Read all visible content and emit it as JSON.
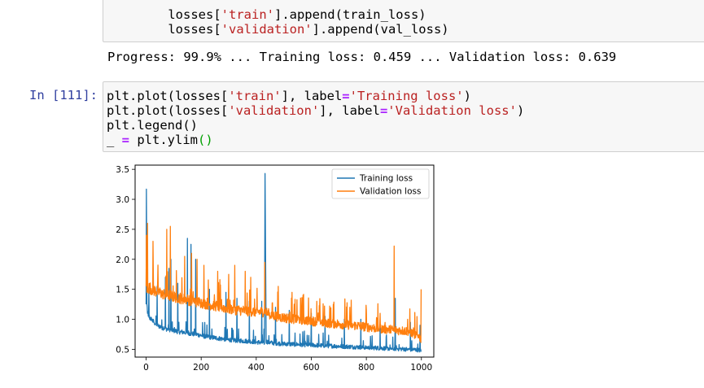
{
  "top_cell": {
    "line1": {
      "a": "    losses[",
      "b": "'train'",
      "c": "].append(train_loss)"
    },
    "line2": {
      "a": "    losses[",
      "b": "'validation'",
      "c": "].append(val_loss)"
    }
  },
  "progress_output": "Progress: 99.9% ... Training loss: 0.459 ... Validation loss: 0.639",
  "cell_111": {
    "prompt": "In [111]:",
    "line1": {
      "a": "plt.plot(losses[",
      "b": "'train'",
      "c": "], label",
      "d": "=",
      "e": "'Training loss'",
      "f": ")"
    },
    "line2": {
      "a": "plt.plot(losses[",
      "b": "'validation'",
      "c": "], label",
      "d": "=",
      "e": "'Validation loss'",
      "f": ")"
    },
    "line3": "plt.legend()",
    "line4": {
      "a": "_ ",
      "b": "=",
      "c": " plt.ylim",
      "d": "()"
    }
  },
  "chart_data": {
    "type": "line",
    "xlim": [
      -40,
      1045
    ],
    "ylim": [
      0.37,
      3.57
    ],
    "xticks": [
      0,
      200,
      400,
      600,
      800,
      1000
    ],
    "yticks": [
      0.5,
      1.0,
      1.5,
      2.0,
      2.5,
      3.0,
      3.5
    ],
    "xtick_labels": [
      "0",
      "200",
      "400",
      "600",
      "800",
      "1000"
    ],
    "ytick_labels": [
      "0.5",
      "1.0",
      "1.5",
      "2.0",
      "2.5",
      "3.0",
      "3.5"
    ],
    "legend_position": "top-right",
    "grid": false,
    "n_points": 1000,
    "series": [
      {
        "name": "Training loss",
        "color": "#1f77b4",
        "key_x": [
          0,
          1,
          3,
          5,
          8,
          15,
          20,
          30,
          45,
          60,
          80,
          85,
          100,
          120,
          140,
          150,
          160,
          180,
          200,
          220,
          250,
          280,
          300,
          320,
          350,
          380,
          400,
          420,
          430,
          432,
          436,
          450,
          500,
          550,
          600,
          650,
          700,
          750,
          800,
          850,
          890,
          900,
          950,
          990,
          999
        ],
        "key_y": [
          1.25,
          3.17,
          1.25,
          1.1,
          1.05,
          1.0,
          0.98,
          0.93,
          0.88,
          0.85,
          0.82,
          0.82,
          0.8,
          0.78,
          0.77,
          0.77,
          0.75,
          0.74,
          0.72,
          0.7,
          0.68,
          0.66,
          0.65,
          0.64,
          0.63,
          0.62,
          0.61,
          0.6,
          0.6,
          3.43,
          0.62,
          0.6,
          0.58,
          0.57,
          0.56,
          0.55,
          0.54,
          0.53,
          0.52,
          0.51,
          0.5,
          0.5,
          0.49,
          0.48,
          0.46
        ],
        "noise": 0.09,
        "spikes": [
          [
            10,
            1.5
          ],
          [
            40,
            1.55
          ],
          [
            70,
            1.7
          ],
          [
            83,
            1.85
          ],
          [
            90,
            2.0
          ],
          [
            115,
            1.6
          ],
          [
            150,
            2.35
          ],
          [
            163,
            2.25
          ],
          [
            180,
            2.0
          ],
          [
            230,
            1.5
          ],
          [
            290,
            1.45
          ],
          [
            330,
            1.35
          ],
          [
            375,
            1.3
          ],
          [
            420,
            1.3
          ],
          [
            470,
            1.2
          ],
          [
            520,
            1.15
          ],
          [
            600,
            1.1
          ],
          [
            650,
            1.05
          ],
          [
            720,
            1.0
          ],
          [
            780,
            1.0
          ],
          [
            850,
            0.9
          ],
          [
            905,
            1.35
          ],
          [
            960,
            0.95
          ],
          [
            995,
            0.9
          ]
        ]
      },
      {
        "name": "Validation loss",
        "color": "#ff7f0e",
        "key_x": [
          0,
          1,
          3,
          10,
          30,
          60,
          100,
          150,
          200,
          250,
          300,
          350,
          400,
          432,
          450,
          500,
          550,
          600,
          650,
          700,
          750,
          800,
          850,
          900,
          950,
          990,
          999
        ],
        "key_y": [
          1.55,
          2.4,
          1.45,
          1.5,
          1.45,
          1.4,
          1.35,
          1.3,
          1.25,
          1.2,
          1.15,
          1.12,
          1.1,
          1.1,
          1.05,
          1.0,
          0.98,
          0.95,
          0.92,
          0.9,
          0.88,
          0.85,
          0.82,
          0.8,
          0.78,
          0.7,
          0.65
        ],
        "noise": 0.17,
        "spikes": [
          [
            5,
            2.6
          ],
          [
            25,
            2.3
          ],
          [
            75,
            2.5
          ],
          [
            88,
            2.55
          ],
          [
            140,
            2.05
          ],
          [
            165,
            2.1
          ],
          [
            185,
            2.0
          ],
          [
            210,
            1.9
          ],
          [
            260,
            1.8
          ],
          [
            300,
            1.75
          ],
          [
            322,
            1.9
          ],
          [
            360,
            1.8
          ],
          [
            380,
            1.7
          ],
          [
            431,
            1.95
          ],
          [
            480,
            1.55
          ],
          [
            530,
            1.45
          ],
          [
            570,
            1.4
          ],
          [
            620,
            1.3
          ],
          [
            680,
            1.25
          ],
          [
            740,
            1.2
          ],
          [
            800,
            1.15
          ],
          [
            850,
            1.1
          ],
          [
            901,
            2.22
          ],
          [
            950,
            1.0
          ],
          [
            999,
            1.5
          ]
        ]
      }
    ]
  }
}
